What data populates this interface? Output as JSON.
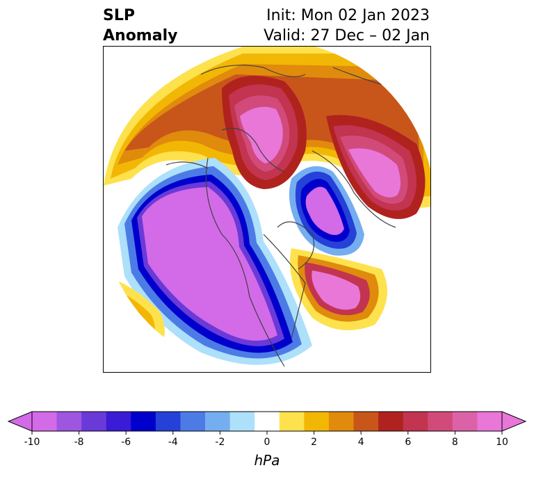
{
  "title": {
    "left_line1": "SLP",
    "left_line2": "Anomaly",
    "right_line1": "Init: Mon 02 Jan 2023",
    "right_line2": "Valid: 27 Dec – 02 Jan"
  },
  "colorbar": {
    "label": "hPa",
    "extend": "both",
    "levels": [
      -10,
      -9,
      -8,
      -7,
      -6,
      -5,
      -4,
      -3,
      -2,
      -1,
      1,
      2,
      3,
      4,
      5,
      6,
      7,
      8,
      9,
      10
    ],
    "colors": [
      "#d36ae8",
      "#9e55e0",
      "#6a3ad9",
      "#3a1bd6",
      "#0000cc",
      "#2541d8",
      "#4d7be6",
      "#75aef0",
      "#ade0fa",
      "#ffffff",
      "#fde24d",
      "#f2b705",
      "#e08b0c",
      "#c8561a",
      "#b0221e",
      "#c2344f",
      "#d14a7a",
      "#dc62a8",
      "#e877d8"
    ],
    "ticks": [
      "-10",
      "-8",
      "-6",
      "-4",
      "-2",
      "0",
      "2",
      "4",
      "6",
      "8",
      "10"
    ]
  },
  "map": {
    "projection": "north polar stereographic",
    "features": [
      "positive anomaly over Siberia",
      "positive anomaly over Europe/Scandinavia",
      "positive anomaly over North Atlantic",
      "negative anomaly over Alaska/North Pacific",
      "negative anomaly over North America",
      "negative anomaly over Greenland/Arctic"
    ]
  }
}
